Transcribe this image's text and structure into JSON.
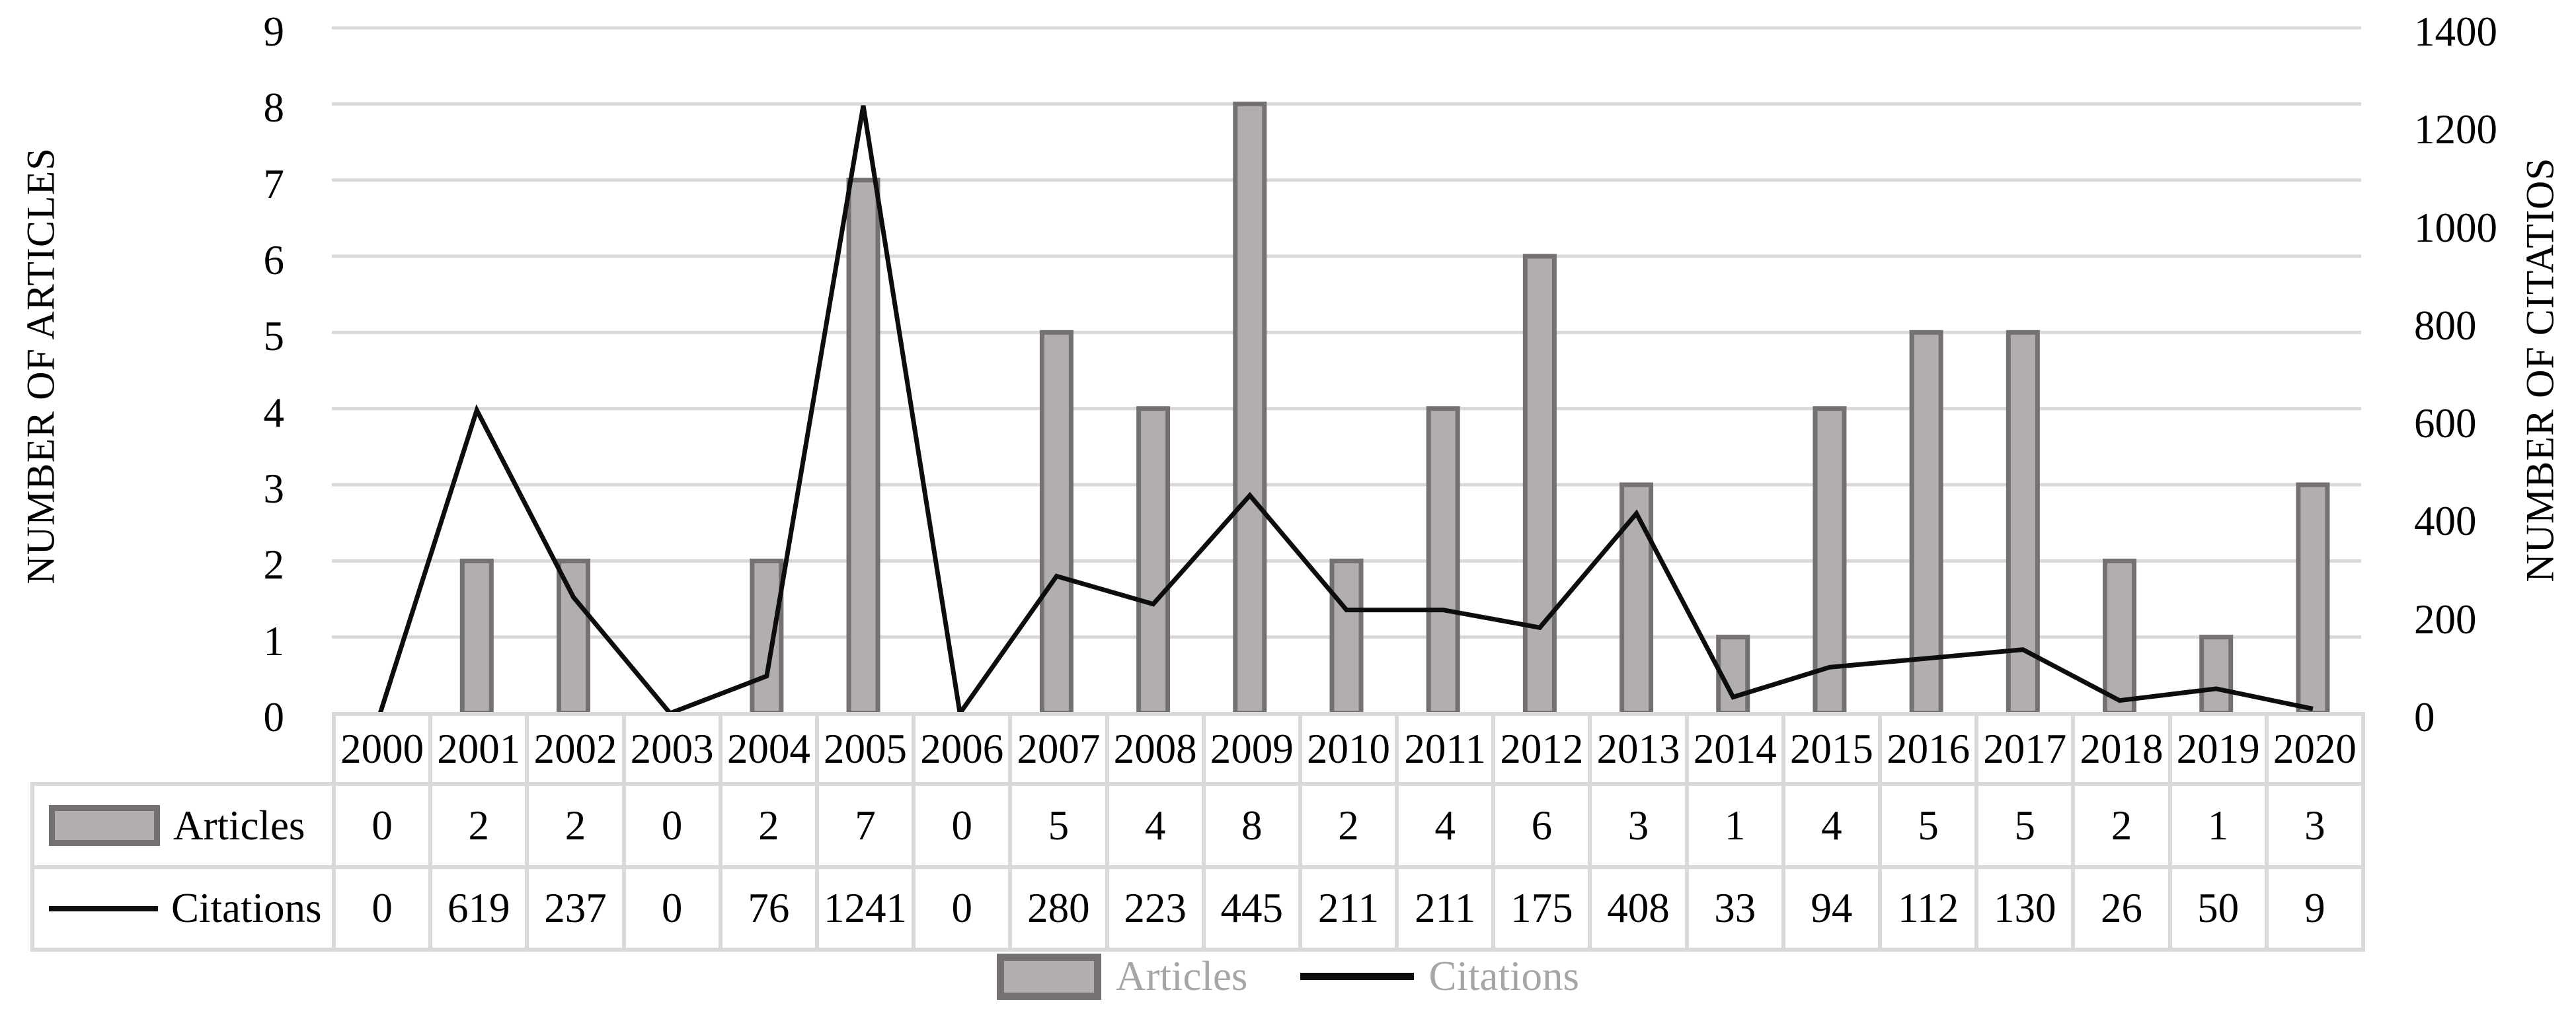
{
  "chart_data": {
    "type": "combo",
    "categories": [
      "2000",
      "2001",
      "2002",
      "2003",
      "2004",
      "2005",
      "2006",
      "2007",
      "2008",
      "2009",
      "2010",
      "2011",
      "2012",
      "2013",
      "2014",
      "2015",
      "2016",
      "2017",
      "2018",
      "2019",
      "2020"
    ],
    "series": [
      {
        "name": "Articles",
        "chart": "bar",
        "axis": "left",
        "values": [
          0,
          2,
          2,
          0,
          2,
          7,
          0,
          5,
          4,
          8,
          2,
          4,
          6,
          3,
          1,
          4,
          5,
          5,
          2,
          1,
          3
        ]
      },
      {
        "name": "Citations",
        "chart": "line",
        "axis": "right",
        "values": [
          0,
          619,
          237,
          0,
          76,
          1241,
          0,
          280,
          223,
          445,
          211,
          211,
          175,
          408,
          33,
          94,
          112,
          130,
          26,
          50,
          9
        ]
      }
    ],
    "left_axis": {
      "label": "NUMBER OF ARTICLES",
      "min": 0,
      "max": 9,
      "tick_step": 1,
      "ticks": [
        0,
        1,
        2,
        3,
        4,
        5,
        6,
        7,
        8,
        9
      ]
    },
    "right_axis": {
      "label": "NUMBER OF CITATIOS",
      "min": 0,
      "max": 1400,
      "tick_step": 200,
      "ticks": [
        0,
        200,
        400,
        600,
        800,
        1000,
        1200,
        1400
      ]
    },
    "grid": true,
    "legend_position": "bottom",
    "data_table_shown": true
  },
  "legend": {
    "articles_label": "Articles",
    "citations_label": "Citations"
  },
  "colors": {
    "bar_fill": "#b3aeae",
    "bar_border": "#767171",
    "line": "#0d0d0d",
    "gridline": "#d9d9d9",
    "table_border": "#d9d9d9",
    "legend_text": "#a6a6a6",
    "text": "#000000",
    "background": "#ffffff"
  }
}
